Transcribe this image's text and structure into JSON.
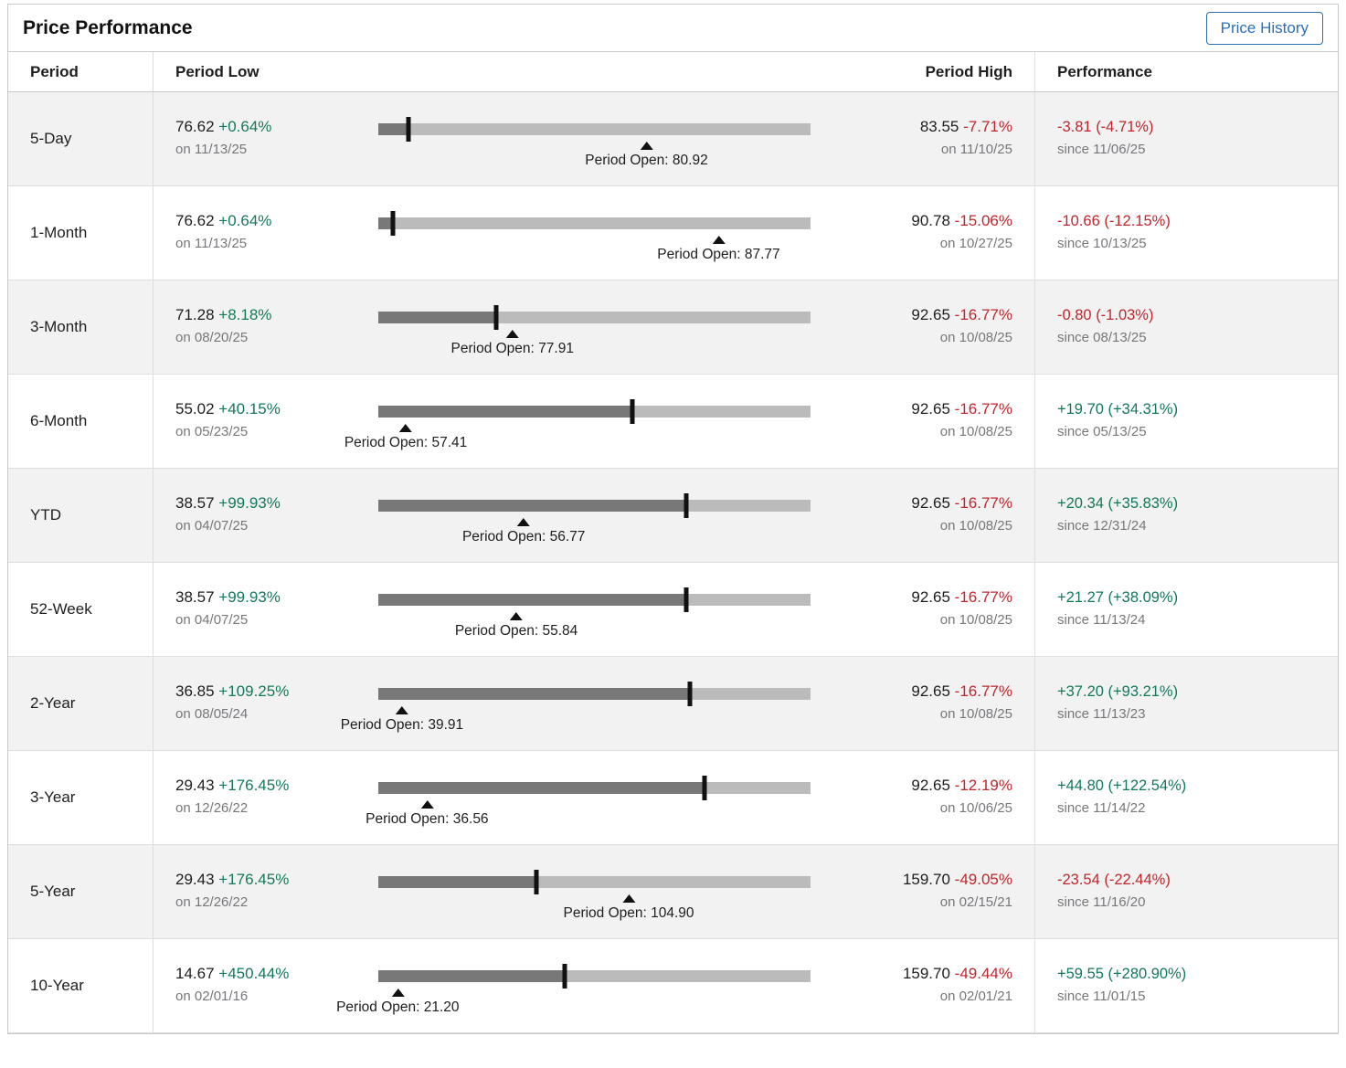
{
  "title": "Price Performance",
  "button_label": "Price History",
  "columns": {
    "period": "Period",
    "low": "Period Low",
    "high": "Period High",
    "performance": "Performance"
  },
  "colors": {
    "positive": "#14785a",
    "negative": "#c0262c",
    "bar_light": "#bbbbbb",
    "bar_dark": "#787878",
    "button_blue": "#2d6eb5"
  },
  "rows": [
    {
      "period": "5-Day",
      "low_price": "76.62",
      "low_change": "+0.64%",
      "low_date": "on 11/13/25",
      "low_value": 76.62,
      "open_label": "Period Open: 80.92",
      "open_value": 80.92,
      "high_price": "83.55",
      "high_change": "-7.71%",
      "high_date": "on 11/10/25",
      "high_value": 83.55,
      "perf_text": "-3.81 (-4.71%)",
      "perf_value": -3.81,
      "perf_since": "since 11/06/25"
    },
    {
      "period": "1-Month",
      "low_price": "76.62",
      "low_change": "+0.64%",
      "low_date": "on 11/13/25",
      "low_value": 76.62,
      "open_label": "Period Open: 87.77",
      "open_value": 87.77,
      "high_price": "90.78",
      "high_change": "-15.06%",
      "high_date": "on 10/27/25",
      "high_value": 90.78,
      "perf_text": "-10.66 (-12.15%)",
      "perf_value": -10.66,
      "perf_since": "since 10/13/25"
    },
    {
      "period": "3-Month",
      "low_price": "71.28",
      "low_change": "+8.18%",
      "low_date": "on 08/20/25",
      "low_value": 71.28,
      "open_label": "Period Open: 77.91",
      "open_value": 77.91,
      "high_price": "92.65",
      "high_change": "-16.77%",
      "high_date": "on 10/08/25",
      "high_value": 92.65,
      "perf_text": "-0.80 (-1.03%)",
      "perf_value": -0.8,
      "perf_since": "since 08/13/25"
    },
    {
      "period": "6-Month",
      "low_price": "55.02",
      "low_change": "+40.15%",
      "low_date": "on 05/23/25",
      "low_value": 55.02,
      "open_label": "Period Open: 57.41",
      "open_value": 57.41,
      "high_price": "92.65",
      "high_change": "-16.77%",
      "high_date": "on 10/08/25",
      "high_value": 92.65,
      "perf_text": "+19.70 (+34.31%)",
      "perf_value": 19.7,
      "perf_since": "since 05/13/25"
    },
    {
      "period": "YTD",
      "low_price": "38.57",
      "low_change": "+99.93%",
      "low_date": "on 04/07/25",
      "low_value": 38.57,
      "open_label": "Period Open: 56.77",
      "open_value": 56.77,
      "high_price": "92.65",
      "high_change": "-16.77%",
      "high_date": "on 10/08/25",
      "high_value": 92.65,
      "perf_text": "+20.34 (+35.83%)",
      "perf_value": 20.34,
      "perf_since": "since 12/31/24"
    },
    {
      "period": "52-Week",
      "low_price": "38.57",
      "low_change": "+99.93%",
      "low_date": "on 04/07/25",
      "low_value": 38.57,
      "open_label": "Period Open: 55.84",
      "open_value": 55.84,
      "high_price": "92.65",
      "high_change": "-16.77%",
      "high_date": "on 10/08/25",
      "high_value": 92.65,
      "perf_text": "+21.27 (+38.09%)",
      "perf_value": 21.27,
      "perf_since": "since 11/13/24"
    },
    {
      "period": "2-Year",
      "low_price": "36.85",
      "low_change": "+109.25%",
      "low_date": "on 08/05/24",
      "low_value": 36.85,
      "open_label": "Period Open: 39.91",
      "open_value": 39.91,
      "high_price": "92.65",
      "high_change": "-16.77%",
      "high_date": "on 10/08/25",
      "high_value": 92.65,
      "perf_text": "+37.20 (+93.21%)",
      "perf_value": 37.2,
      "perf_since": "since 11/13/23"
    },
    {
      "period": "3-Year",
      "low_price": "29.43",
      "low_change": "+176.45%",
      "low_date": "on 12/26/22",
      "low_value": 29.43,
      "open_label": "Period Open: 36.56",
      "open_value": 36.56,
      "high_price": "92.65",
      "high_change": "-12.19%",
      "high_date": "on 10/06/25",
      "high_value": 92.65,
      "perf_text": "+44.80 (+122.54%)",
      "perf_value": 44.8,
      "perf_since": "since 11/14/22"
    },
    {
      "period": "5-Year",
      "low_price": "29.43",
      "low_change": "+176.45%",
      "low_date": "on 12/26/22",
      "low_value": 29.43,
      "open_label": "Period Open: 104.90",
      "open_value": 104.9,
      "high_price": "159.70",
      "high_change": "-49.05%",
      "high_date": "on 02/15/21",
      "high_value": 159.7,
      "perf_text": "-23.54 (-22.44%)",
      "perf_value": -23.54,
      "perf_since": "since 11/16/20"
    },
    {
      "period": "10-Year",
      "low_price": "14.67",
      "low_change": "+450.44%",
      "low_date": "on 02/01/16",
      "low_value": 14.67,
      "open_label": "Period Open: 21.20",
      "open_value": 21.2,
      "high_price": "159.70",
      "high_change": "-49.44%",
      "high_date": "on 02/01/21",
      "high_value": 159.7,
      "perf_text": "+59.55 (+280.90%)",
      "perf_value": 59.55,
      "perf_since": "since 11/01/15"
    }
  ]
}
